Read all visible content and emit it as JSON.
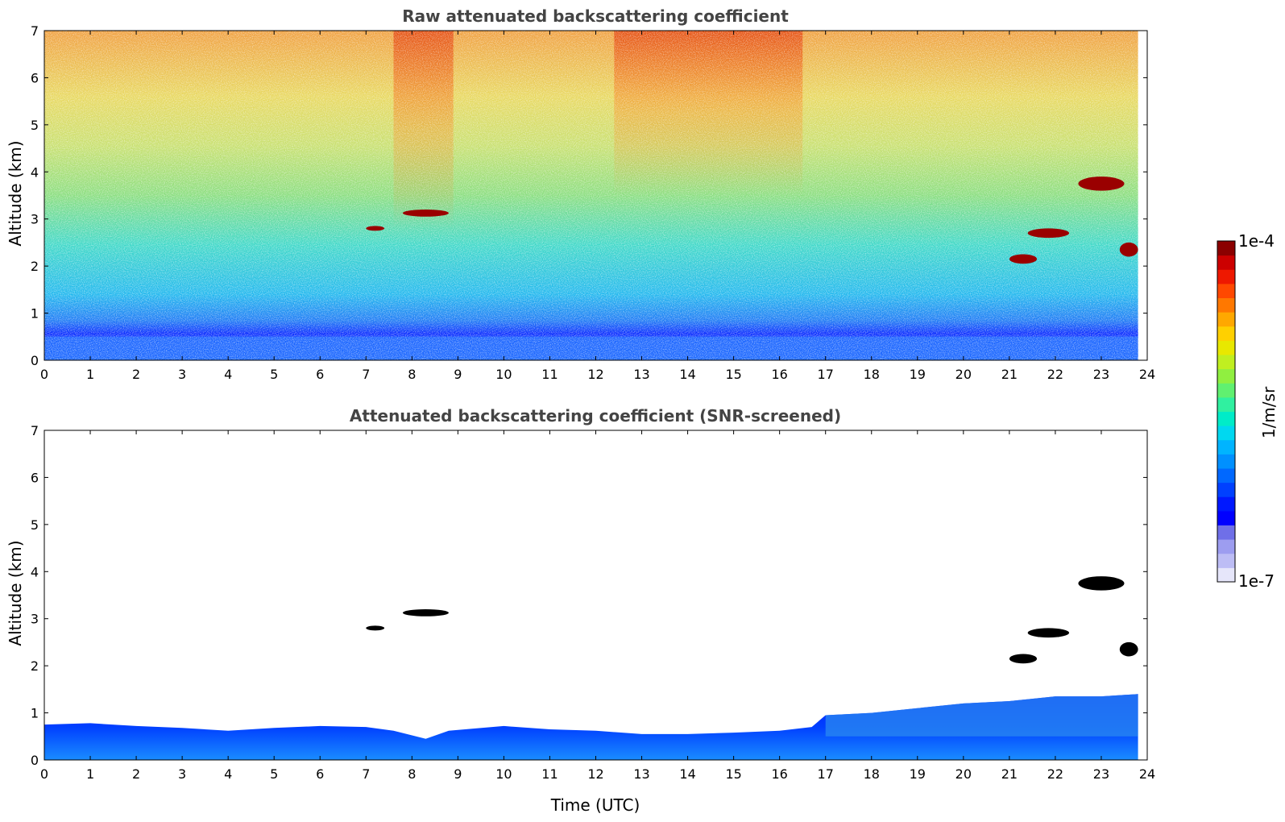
{
  "chart_data": [
    {
      "type": "heatmap",
      "title": "Raw attenuated backscattering coefficient",
      "xlabel": "",
      "ylabel": "Altitude (km)",
      "xlim": [
        0,
        24
      ],
      "ylim": [
        0,
        7
      ],
      "xticks": [
        "0",
        "1",
        "2",
        "3",
        "4",
        "5",
        "6",
        "7",
        "8",
        "9",
        "10",
        "11",
        "12",
        "13",
        "14",
        "15",
        "16",
        "17",
        "18",
        "19",
        "20",
        "21",
        "22",
        "23",
        "24"
      ],
      "yticks": [
        "0",
        "1",
        "2",
        "3",
        "4",
        "5",
        "6",
        "7"
      ],
      "data_end_time": 23.8,
      "layers": [
        {
          "label": "surface aerosol layer",
          "x_start": 0,
          "x_end": 23.8,
          "y_bottom": 0,
          "y_top": 0.5
        },
        {
          "label": "cloud",
          "x_start": 7.0,
          "x_end": 7.4,
          "y_bottom": 2.75,
          "y_top": 2.85
        },
        {
          "label": "cloud",
          "x_start": 7.8,
          "x_end": 8.8,
          "y_bottom": 3.05,
          "y_top": 3.2
        },
        {
          "label": "cloud",
          "x_start": 21.0,
          "x_end": 21.6,
          "y_bottom": 2.05,
          "y_top": 2.25
        },
        {
          "label": "cloud",
          "x_start": 21.4,
          "x_end": 22.3,
          "y_bottom": 2.6,
          "y_top": 2.8
        },
        {
          "label": "cloud",
          "x_start": 22.5,
          "x_end": 23.5,
          "y_bottom": 3.6,
          "y_top": 3.9
        },
        {
          "label": "cloud",
          "x_start": 23.4,
          "x_end": 23.8,
          "y_bottom": 2.2,
          "y_top": 2.5
        }
      ]
    },
    {
      "type": "heatmap",
      "title": "Attenuated backscattering coefficient (SNR-screened)",
      "xlabel": "Time (UTC)",
      "ylabel": "Altitude (km)",
      "xlim": [
        0,
        24
      ],
      "ylim": [
        0,
        7
      ],
      "xticks": [
        "0",
        "1",
        "2",
        "3",
        "4",
        "5",
        "6",
        "7",
        "8",
        "9",
        "10",
        "11",
        "12",
        "13",
        "14",
        "15",
        "16",
        "17",
        "18",
        "19",
        "20",
        "21",
        "22",
        "23",
        "24"
      ],
      "yticks": [
        "0",
        "1",
        "2",
        "3",
        "4",
        "5",
        "6",
        "7"
      ],
      "data_end_time": 23.8,
      "boundary_layer_top": [
        [
          0,
          0.75
        ],
        [
          1,
          0.78
        ],
        [
          2,
          0.72
        ],
        [
          3,
          0.68
        ],
        [
          4,
          0.62
        ],
        [
          5,
          0.68
        ],
        [
          6,
          0.72
        ],
        [
          7,
          0.7
        ],
        [
          7.6,
          0.62
        ],
        [
          8.3,
          0.45
        ],
        [
          8.8,
          0.62
        ],
        [
          10,
          0.72
        ],
        [
          11,
          0.65
        ],
        [
          12,
          0.62
        ],
        [
          13,
          0.55
        ],
        [
          14,
          0.55
        ],
        [
          15,
          0.58
        ],
        [
          16,
          0.62
        ],
        [
          16.7,
          0.7
        ],
        [
          17,
          0.95
        ],
        [
          18,
          1.0
        ],
        [
          19,
          1.1
        ],
        [
          20,
          1.2
        ],
        [
          21,
          1.25
        ],
        [
          22,
          1.35
        ],
        [
          23,
          1.35
        ],
        [
          23.8,
          1.4
        ]
      ],
      "layers": [
        {
          "label": "cloud",
          "x_start": 7.0,
          "x_end": 7.4,
          "y_bottom": 2.75,
          "y_top": 2.85
        },
        {
          "label": "cloud",
          "x_start": 7.8,
          "x_end": 8.8,
          "y_bottom": 3.05,
          "y_top": 3.2
        },
        {
          "label": "cloud",
          "x_start": 21.0,
          "x_end": 21.6,
          "y_bottom": 2.05,
          "y_top": 2.25
        },
        {
          "label": "cloud",
          "x_start": 21.4,
          "x_end": 22.3,
          "y_bottom": 2.6,
          "y_top": 2.8
        },
        {
          "label": "cloud",
          "x_start": 22.5,
          "x_end": 23.5,
          "y_bottom": 3.6,
          "y_top": 3.9
        },
        {
          "label": "cloud",
          "x_start": 23.4,
          "x_end": 23.8,
          "y_bottom": 2.2,
          "y_top": 2.5
        }
      ]
    }
  ],
  "colorbar": {
    "max_label": "1e-4",
    "min_label": "1e-7",
    "unit_label": "1/m/sr",
    "colors": [
      "#e6e6fa",
      "#bdbdf5",
      "#9d9df0",
      "#6f6fe8",
      "#0000ff",
      "#0018ff",
      "#0040ff",
      "#0068ff",
      "#0090ff",
      "#00b4ff",
      "#00d8f0",
      "#00ecc8",
      "#30f0a0",
      "#60f070",
      "#90ef40",
      "#c0ef20",
      "#e8e800",
      "#ffd000",
      "#ffa800",
      "#ff7800",
      "#ff4800",
      "#ee1800",
      "#cc0000",
      "#8b0000"
    ]
  }
}
